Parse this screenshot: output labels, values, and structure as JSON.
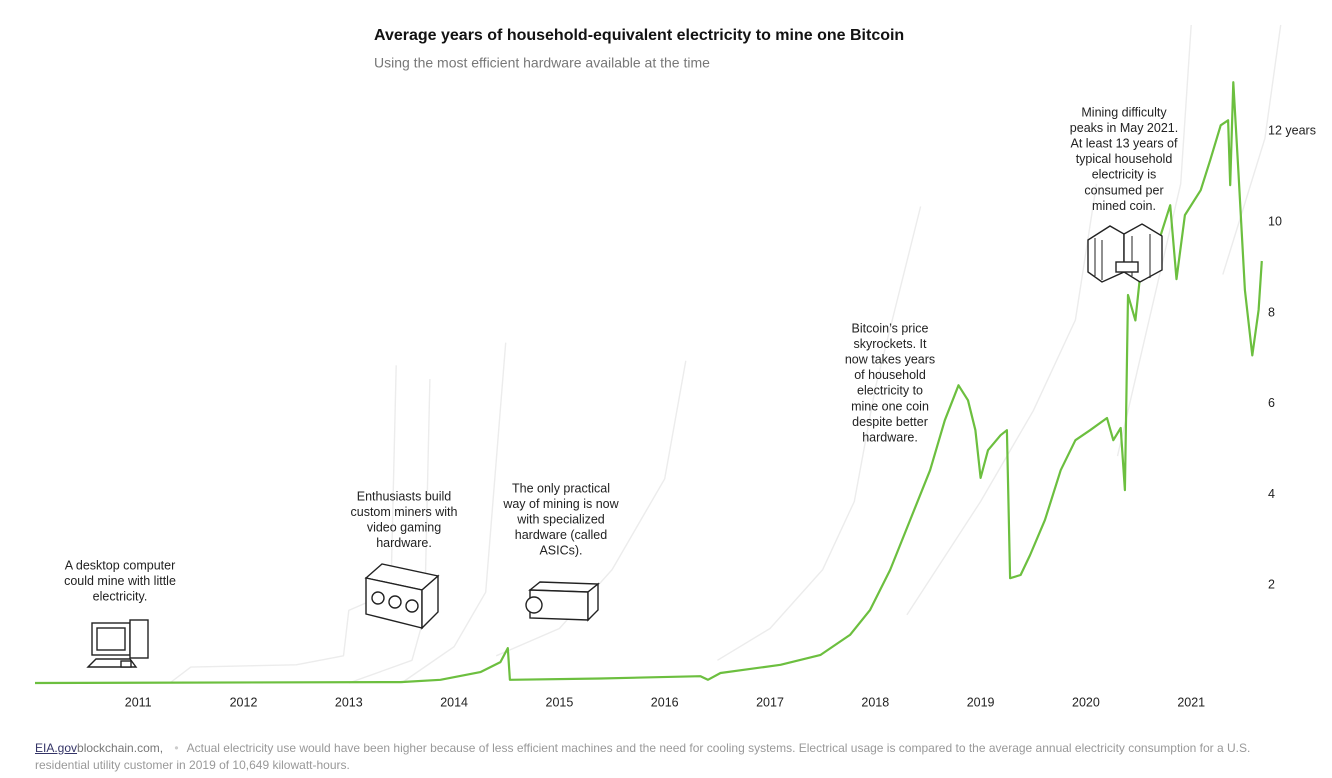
{
  "chart_data": {
    "type": "line",
    "title": "Average years of household-equivalent electricity to mine one Bitcoin",
    "subtitle": "Using the most efficient hardware available at the time",
    "xlim": [
      2010.02,
      2021.9
    ],
    "xticks": [
      2011,
      2012,
      2013,
      2014,
      2015,
      2016,
      2017,
      2018,
      2019,
      2020,
      2021
    ],
    "ylim": [
      0,
      14.5
    ],
    "yticks": [
      2,
      4,
      6,
      8,
      10,
      {
        "value": 12,
        "label": "12 years"
      }
    ],
    "series": [
      {
        "color": "#6cbf3f",
        "x": [
          2010.02,
          2013.49,
          2013.87,
          2014.25,
          2014.44,
          2014.51,
          2014.53,
          2015.39,
          2016.34,
          2016.41,
          2016.53,
          2017.1,
          2017.48,
          2017.76,
          2017.95,
          2018.14,
          2018.33,
          2018.52,
          2018.66,
          2018.79,
          2018.88,
          2018.95,
          2019.0,
          2019.07,
          2019.19,
          2019.25,
          2019.28,
          2019.38,
          2019.47,
          2019.61,
          2019.76,
          2019.9,
          2020.04,
          2020.2,
          2020.26,
          2020.33,
          2020.37,
          2020.4,
          2020.47,
          2020.52,
          2020.61,
          2020.71,
          2020.8,
          2020.86,
          2020.94,
          2021.09,
          2021.18,
          2021.28,
          2021.35,
          2021.37,
          2021.4,
          2021.45,
          2021.51,
          2021.58,
          2021.64,
          2021.67
        ],
        "values": [
          0,
          0.02,
          0.07,
          0.24,
          0.46,
          0.77,
          0.07,
          0.1,
          0.15,
          0.07,
          0.22,
          0.4,
          0.62,
          1.06,
          1.61,
          2.49,
          3.59,
          4.69,
          5.79,
          6.56,
          6.23,
          5.57,
          4.52,
          5.13,
          5.46,
          5.57,
          2.31,
          2.38,
          2.82,
          3.59,
          4.69,
          5.35,
          5.57,
          5.84,
          5.35,
          5.62,
          4.25,
          8.55,
          7.99,
          9.1,
          9.21,
          9.87,
          10.53,
          8.9,
          10.31,
          10.86,
          11.52,
          12.29,
          12.4,
          10.97,
          13.24,
          11.19,
          8.66,
          7.22,
          8.22,
          9.3
        ]
      },
      {
        "color": "#ececec",
        "x": [
          2011.3,
          2011.5,
          2012.5,
          2012.95,
          2013.0,
          2013.4,
          2013.45
        ],
        "values": [
          0,
          0.35,
          0.4,
          0.6,
          1.6,
          2.0,
          7.0
        ]
      },
      {
        "color": "#ececec",
        "x": [
          2013.0,
          2013.6,
          2013.72,
          2013.77
        ],
        "values": [
          0,
          0.5,
          1.5,
          6.7
        ]
      },
      {
        "color": "#ececec",
        "x": [
          2013.5,
          2014.0,
          2014.3,
          2014.49
        ],
        "values": [
          0,
          0.8,
          2.0,
          7.5
        ]
      },
      {
        "color": "#ececec",
        "x": [
          2014.4,
          2015.0,
          2015.5,
          2016.0,
          2016.2
        ],
        "values": [
          0.6,
          1.2,
          2.5,
          4.5,
          7.1
        ]
      },
      {
        "color": "#ececec",
        "x": [
          2016.5,
          2017.0,
          2017.5,
          2017.8,
          2018.0,
          2018.43
        ],
        "values": [
          0.5,
          1.2,
          2.5,
          4.0,
          6.5,
          10.5
        ]
      },
      {
        "color": "#ececec",
        "x": [
          2018.3,
          2019.0,
          2019.5,
          2019.9,
          2020.1
        ],
        "values": [
          1.5,
          4.0,
          6.0,
          8.0,
          11
        ]
      },
      {
        "color": "#ececec",
        "x": [
          2020.3,
          2020.6,
          2020.9,
          2021.0
        ],
        "values": [
          5,
          8,
          11,
          14.5
        ]
      },
      {
        "color": "#ececec",
        "x": [
          2021.3,
          2021.5,
          2021.7,
          2021.85
        ],
        "values": [
          9,
          10.5,
          12,
          14.5
        ]
      }
    ],
    "annotations": [
      [
        "A desktop computer",
        "could mine with little",
        "electricity."
      ],
      [
        "Enthusiasts build",
        "custom miners with",
        "video gaming",
        "hardware."
      ],
      [
        "The only practical",
        "way of mining is now",
        "with specialized",
        "hardware (called",
        "ASICs)."
      ],
      [
        "Bitcoin’s price",
        "skyrockets. It",
        "now takes years",
        "of household",
        "electricity to",
        "mine one coin",
        "despite better",
        "hardware."
      ],
      [
        "Mining difficulty",
        "peaks in May 2021.",
        "At least 13 years of",
        "typical household",
        "electricity is",
        "consumed per",
        "mined coin."
      ]
    ],
    "sources": [
      "EIA.gov",
      "blockchain.com"
    ],
    "note": "Actual electricity use would have been higher because of less efficient machines and the need for cooling systems. Electrical usage is compared to the average annual electricity consumption for a U.S. residential utility customer in 2019 of 10,649 kilowatt-hours."
  }
}
